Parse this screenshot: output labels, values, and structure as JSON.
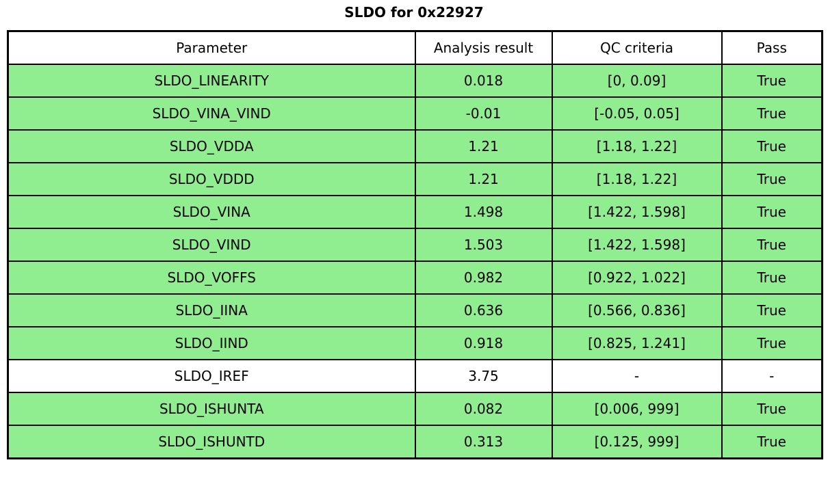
{
  "title": "SLDO for 0x22927",
  "colors": {
    "pass_row_green": "#90EE90",
    "plain_row_white": "#ffffff",
    "border": "#000000"
  },
  "table": {
    "headers": [
      "Parameter",
      "Analysis result",
      "QC criteria",
      "Pass"
    ],
    "rows": [
      {
        "parameter": "SLDO_LINEARITY",
        "analysis_result": "0.018",
        "qc_criteria": "[0, 0.09]",
        "pass": "True",
        "highlight": true
      },
      {
        "parameter": "SLDO_VINA_VIND",
        "analysis_result": "-0.01",
        "qc_criteria": "[-0.05, 0.05]",
        "pass": "True",
        "highlight": true
      },
      {
        "parameter": "SLDO_VDDA",
        "analysis_result": "1.21",
        "qc_criteria": "[1.18, 1.22]",
        "pass": "True",
        "highlight": true
      },
      {
        "parameter": "SLDO_VDDD",
        "analysis_result": "1.21",
        "qc_criteria": "[1.18, 1.22]",
        "pass": "True",
        "highlight": true
      },
      {
        "parameter": "SLDO_VINA",
        "analysis_result": "1.498",
        "qc_criteria": "[1.422, 1.598]",
        "pass": "True",
        "highlight": true
      },
      {
        "parameter": "SLDO_VIND",
        "analysis_result": "1.503",
        "qc_criteria": "[1.422, 1.598]",
        "pass": "True",
        "highlight": true
      },
      {
        "parameter": "SLDO_VOFFS",
        "analysis_result": "0.982",
        "qc_criteria": "[0.922, 1.022]",
        "pass": "True",
        "highlight": true
      },
      {
        "parameter": "SLDO_IINA",
        "analysis_result": "0.636",
        "qc_criteria": "[0.566, 0.836]",
        "pass": "True",
        "highlight": true
      },
      {
        "parameter": "SLDO_IIND",
        "analysis_result": "0.918",
        "qc_criteria": "[0.825, 1.241]",
        "pass": "True",
        "highlight": true
      },
      {
        "parameter": "SLDO_IREF",
        "analysis_result": "3.75",
        "qc_criteria": "-",
        "pass": "-",
        "highlight": false
      },
      {
        "parameter": "SLDO_ISHUNTA",
        "analysis_result": "0.082",
        "qc_criteria": "[0.006, 999]",
        "pass": "True",
        "highlight": true
      },
      {
        "parameter": "SLDO_ISHUNTD",
        "analysis_result": "0.313",
        "qc_criteria": "[0.125, 999]",
        "pass": "True",
        "highlight": true
      }
    ]
  },
  "chart_data": {
    "type": "table",
    "title": "SLDO for 0x22927",
    "columns": [
      "Parameter",
      "Analysis result",
      "QC criteria",
      "Pass"
    ],
    "rows": [
      [
        "SLDO_LINEARITY",
        "0.018",
        "[0, 0.09]",
        "True"
      ],
      [
        "SLDO_VINA_VIND",
        "-0.01",
        "[-0.05, 0.05]",
        "True"
      ],
      [
        "SLDO_VDDA",
        "1.21",
        "[1.18, 1.22]",
        "True"
      ],
      [
        "SLDO_VDDD",
        "1.21",
        "[1.18, 1.22]",
        "True"
      ],
      [
        "SLDO_VINA",
        "1.498",
        "[1.422, 1.598]",
        "True"
      ],
      [
        "SLDO_VIND",
        "1.503",
        "[1.422, 1.598]",
        "True"
      ],
      [
        "SLDO_VOFFS",
        "0.982",
        "[0.922, 1.022]",
        "True"
      ],
      [
        "SLDO_IINA",
        "0.636",
        "[0.566, 0.836]",
        "True"
      ],
      [
        "SLDO_IIND",
        "0.918",
        "[0.825, 1.241]",
        "True"
      ],
      [
        "SLDO_IREF",
        "3.75",
        "-",
        "-"
      ],
      [
        "SLDO_ISHUNTA",
        "0.082",
        "[0.006, 999]",
        "True"
      ],
      [
        "SLDO_ISHUNTD",
        "0.313",
        "[0.125, 999]",
        "True"
      ]
    ],
    "row_highlight_color": "#90EE90",
    "legend_position": "none",
    "grid": true
  }
}
